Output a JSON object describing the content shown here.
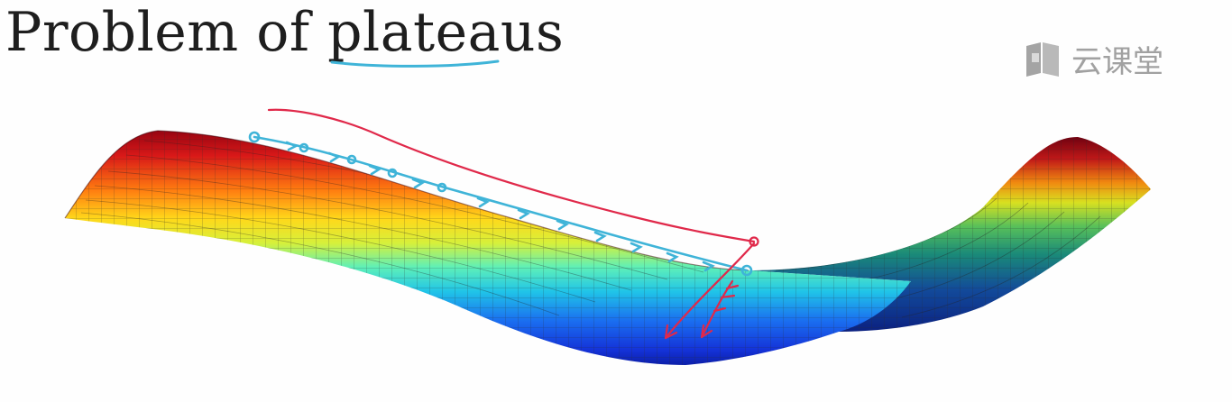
{
  "slide": {
    "title": "Problem of plateaus",
    "watermark": {
      "text": "云课堂",
      "icon": "book-icon"
    },
    "annotations": {
      "underline_color": "#3fb4d8",
      "path_color": "#3fb4d8",
      "arrow_color": "#e0294a"
    },
    "surface": {
      "colormap": "jet"
    }
  }
}
